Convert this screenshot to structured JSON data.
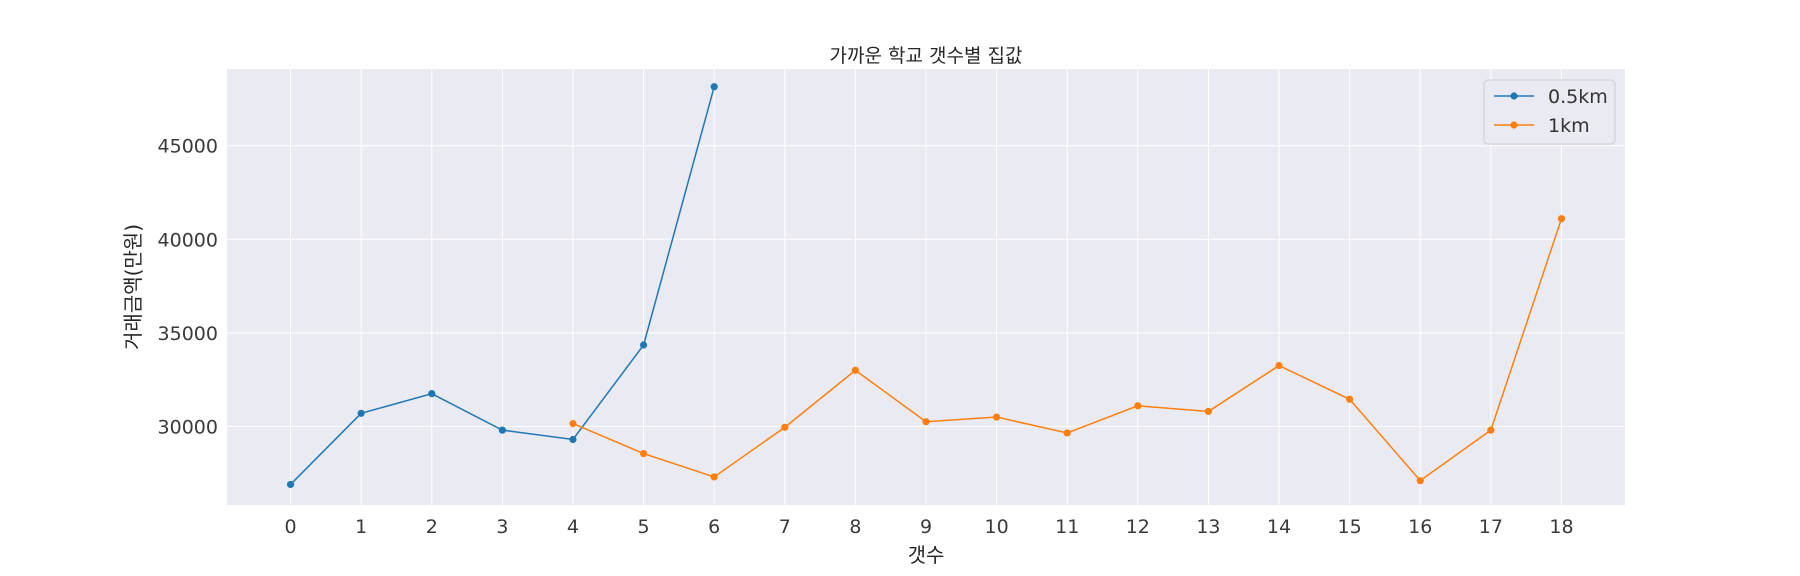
{
  "chart_data": {
    "type": "line",
    "title": "가까운 학교 갯수별 집값",
    "xlabel": "갯수",
    "ylabel": "거래금액(만원)",
    "x_ticks": [
      "0",
      "1",
      "2",
      "3",
      "4",
      "5",
      "6",
      "7",
      "8",
      "9",
      "10",
      "11",
      "12",
      "13",
      "14",
      "15",
      "16",
      "17",
      "18"
    ],
    "y_ticks": [
      "30000",
      "35000",
      "40000",
      "45000"
    ],
    "xlim": [
      -0.9,
      18.9
    ],
    "ylim": [
      25800,
      49100
    ],
    "grid": true,
    "legend_position": "top-right",
    "series": [
      {
        "name": "0.5km",
        "color": "#1f77b4",
        "x": [
          0,
          1,
          2,
          3,
          4,
          5,
          6
        ],
        "y": [
          26900,
          30700,
          31750,
          29800,
          29300,
          34350,
          48150
        ]
      },
      {
        "name": "1km",
        "color": "#ff7f0e",
        "x": [
          4,
          5,
          6,
          7,
          8,
          9,
          10,
          11,
          12,
          13,
          14,
          15,
          16,
          17,
          18
        ],
        "y": [
          30150,
          28550,
          27300,
          29950,
          33000,
          30250,
          30500,
          29650,
          31100,
          30800,
          33250,
          31450,
          27100,
          29800,
          41100
        ]
      }
    ]
  }
}
